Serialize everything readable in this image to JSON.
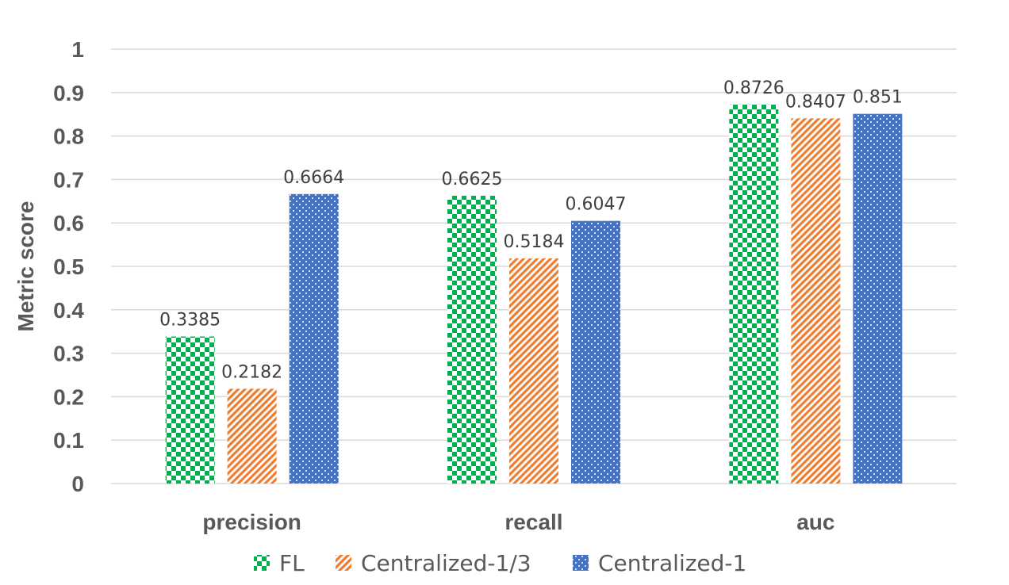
{
  "chart_data": {
    "type": "bar",
    "title": "",
    "xlabel": "",
    "ylabel": "Metric score",
    "ylim": [
      0,
      1
    ],
    "yticks": [
      "0",
      "0.1",
      "0.2",
      "0.3",
      "0.4",
      "0.5",
      "0.6",
      "0.7",
      "0.8",
      "0.9",
      "1"
    ],
    "grid": true,
    "legend_position": "bottom",
    "categories": [
      "precision",
      "recall",
      "auc"
    ],
    "series": [
      {
        "name": "FL",
        "color": "#00b050",
        "pattern": "checkerboard",
        "values": [
          0.3385,
          0.6625,
          0.8726
        ],
        "labels": [
          "0.3385",
          "0.6625",
          "0.8726"
        ]
      },
      {
        "name": "Centralized-1/3",
        "color": "#ed7d31",
        "pattern": "diagonal-stripes",
        "values": [
          0.2182,
          0.5184,
          0.8407
        ],
        "labels": [
          "0.2182",
          "0.5184",
          "0.8407"
        ]
      },
      {
        "name": "Centralized-1",
        "color": "#4472c4",
        "pattern": "dotted",
        "values": [
          0.6664,
          0.6047,
          0.851
        ],
        "labels": [
          "0.6664",
          "0.6047",
          "0.851"
        ]
      }
    ]
  }
}
